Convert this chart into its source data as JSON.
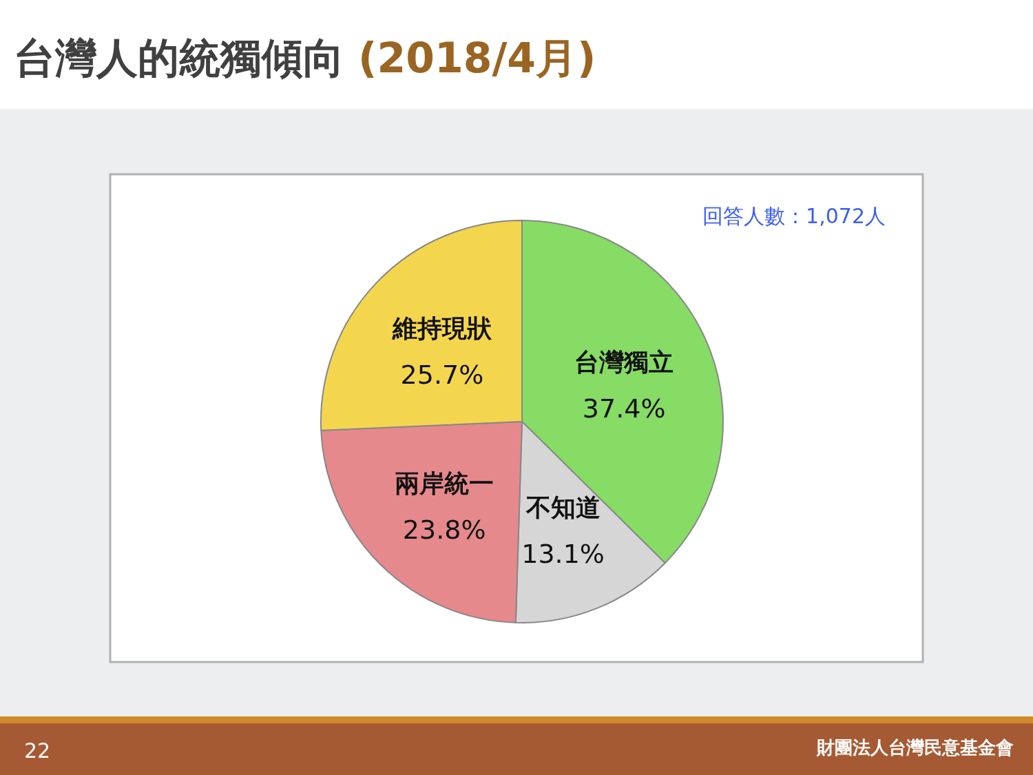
{
  "chart_data": {
    "type": "pie",
    "title": "台灣人的統獨傾向",
    "subtitle": "(2018/4月)",
    "categories": [
      "台灣獨立",
      "不知道",
      "兩岸統一",
      "維持現狀"
    ],
    "values": [
      37.4,
      13.1,
      23.8,
      25.7
    ],
    "value_labels": [
      "37.4%",
      "13.1%",
      "23.8%",
      "25.7%"
    ],
    "colors": [
      "#86dc64",
      "#d6d6d6",
      "#e6898c",
      "#f4d64e"
    ],
    "annotations": [
      "回答人數：1,072人",
      "22",
      "財團法人台灣民意基金會"
    ],
    "legend": false
  }
}
